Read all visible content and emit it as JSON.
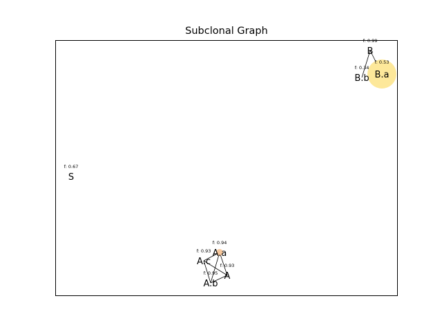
{
  "title": "Subclonal Graph",
  "nodes": [
    {
      "id": "B",
      "label": "B",
      "freq": "f: 0.99",
      "circle_color": null
    },
    {
      "id": "B.a",
      "label": "B.a",
      "freq": "f: 0.53",
      "circle_color": "#fde89a"
    },
    {
      "id": "B.b",
      "label": "B.b",
      "freq": "f: 0.34",
      "circle_color": null
    },
    {
      "id": "S",
      "label": "S",
      "freq": "f: 0.67",
      "circle_color": null
    },
    {
      "id": "A.a",
      "label": "A.a",
      "freq": "f: 0.94",
      "circle_color": "#f6c79c"
    },
    {
      "id": "A.c",
      "label": "A.c",
      "freq": "f: 0.93",
      "circle_color": null
    },
    {
      "id": "A",
      "label": "A",
      "freq": "f: 0.93",
      "circle_color": null
    },
    {
      "id": "A.b",
      "label": "A.b",
      "freq": "f: 0.95",
      "circle_color": null
    }
  ],
  "edges": [
    [
      "B",
      "B.a"
    ],
    [
      "B",
      "B.b"
    ],
    [
      "A.a",
      "A.c"
    ],
    [
      "A.a",
      "A"
    ],
    [
      "A.a",
      "A.b"
    ],
    [
      "A.c",
      "A"
    ],
    [
      "A.c",
      "A.b"
    ],
    [
      "A.b",
      "A"
    ]
  ]
}
